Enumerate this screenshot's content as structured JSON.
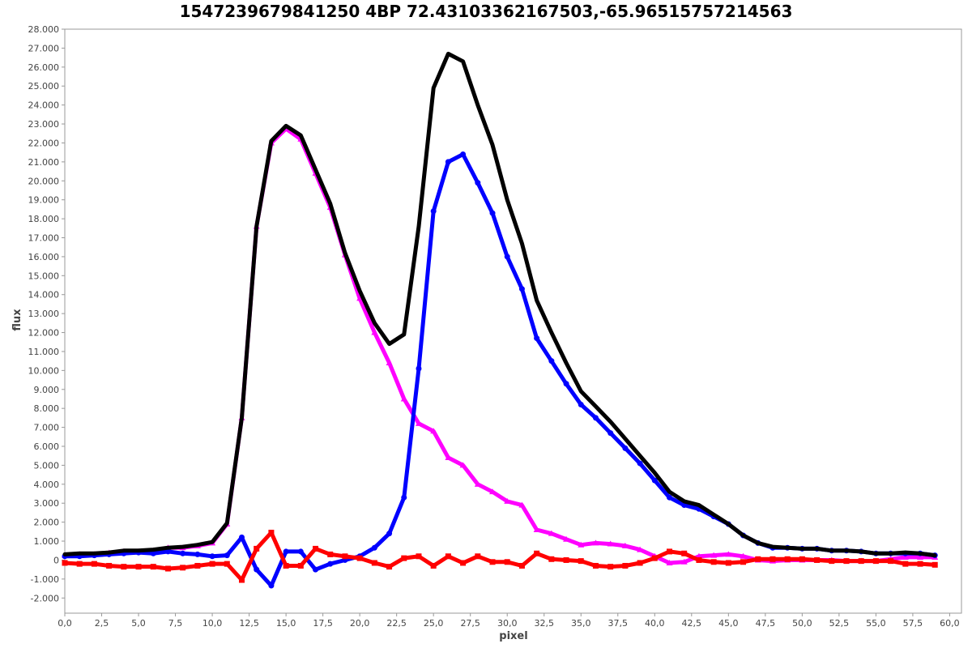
{
  "chart_data": {
    "type": "line",
    "title": "1547239679841250 4BP 72.43103362167503,-65.96515757214563",
    "xlabel": "pixel",
    "ylabel": "flux",
    "xlim": [
      0,
      60.8
    ],
    "ylim": [
      -2800,
      28000
    ],
    "x_ticks": [
      "0,0",
      "2,5",
      "5,0",
      "7,5",
      "10,0",
      "12,5",
      "15,0",
      "17,5",
      "20,0",
      "22,5",
      "25,0",
      "27,5",
      "30,0",
      "32,5",
      "35,0",
      "37,5",
      "40,0",
      "42,5",
      "45,0",
      "47,5",
      "50,0",
      "52,5",
      "55,0",
      "57,5",
      "60,0"
    ],
    "y_ticks": [
      "-2.000",
      "-1.000",
      "0",
      "1.000",
      "2.000",
      "3.000",
      "4.000",
      "5.000",
      "6.000",
      "7.000",
      "8.000",
      "9.000",
      "10.000",
      "11.000",
      "12.000",
      "13.000",
      "14.000",
      "15.000",
      "16.000",
      "17.000",
      "18.000",
      "19.000",
      "20.000",
      "21.000",
      "22.000",
      "23.000",
      "24.000",
      "25.000",
      "26.000",
      "27.000",
      "28.000"
    ],
    "x_tick_values": [
      0,
      2.5,
      5,
      7.5,
      10,
      12.5,
      15,
      17.5,
      20,
      22.5,
      25,
      27.5,
      30,
      32.5,
      35,
      37.5,
      40,
      42.5,
      45,
      47.5,
      50,
      52.5,
      55,
      57.5,
      60
    ],
    "y_tick_values": [
      -2000,
      -1000,
      0,
      1000,
      2000,
      3000,
      4000,
      5000,
      6000,
      7000,
      8000,
      9000,
      10000,
      11000,
      12000,
      13000,
      14000,
      15000,
      16000,
      17000,
      18000,
      19000,
      20000,
      21000,
      22000,
      23000,
      24000,
      25000,
      26000,
      27000,
      28000
    ],
    "grid": false,
    "x": [
      0,
      1,
      2,
      3,
      4,
      5,
      6,
      7,
      8,
      9,
      10,
      11,
      12,
      13,
      14,
      15,
      16,
      17,
      18,
      19,
      20,
      21,
      22,
      23,
      24,
      25,
      26,
      27,
      28,
      29,
      30,
      31,
      32,
      33,
      34,
      35,
      36,
      37,
      38,
      39,
      40,
      41,
      42,
      43,
      44,
      45,
      46,
      47,
      48,
      49,
      50,
      51,
      52,
      53,
      54,
      55,
      56,
      57,
      58,
      59
    ],
    "series": [
      {
        "color": "#ff00ff",
        "marker": "triangle",
        "values": [
          250,
          300,
          300,
          380,
          450,
          450,
          500,
          650,
          650,
          750,
          900,
          1900,
          7500,
          17600,
          22000,
          22750,
          22200,
          20400,
          18600,
          16100,
          13800,
          12000,
          10400,
          8500,
          7200,
          6800,
          5400,
          5000,
          4000,
          3600,
          3100,
          2900,
          1600,
          1400,
          1100,
          800,
          900,
          850,
          750,
          550,
          200,
          -150,
          -100,
          200,
          250,
          300,
          200,
          0,
          -50,
          0,
          0,
          0,
          0,
          -50,
          -50,
          -50,
          50,
          150,
          150,
          150
        ]
      },
      {
        "color": "#0000ff",
        "marker": "circle",
        "values": [
          200,
          200,
          250,
          300,
          350,
          400,
          350,
          450,
          350,
          300,
          200,
          250,
          1200,
          -500,
          -1350,
          450,
          450,
          -500,
          -200,
          0,
          200,
          650,
          1400,
          3300,
          10100,
          18400,
          21000,
          21400,
          19900,
          18300,
          16000,
          14300,
          11700,
          10500,
          9300,
          8200,
          7500,
          6700,
          5900,
          5100,
          4200,
          3300,
          2900,
          2700,
          2300,
          1900,
          1300,
          900,
          650,
          650,
          600,
          600,
          500,
          500,
          450,
          350,
          350,
          350,
          350,
          250
        ]
      },
      {
        "color": "#ff0000",
        "marker": "square",
        "values": [
          -150,
          -200,
          -200,
          -300,
          -350,
          -350,
          -350,
          -450,
          -400,
          -300,
          -200,
          -200,
          -1050,
          600,
          1450,
          -300,
          -300,
          600,
          300,
          200,
          100,
          -150,
          -350,
          100,
          200,
          -300,
          200,
          -150,
          200,
          -100,
          -100,
          -300,
          350,
          50,
          0,
          -50,
          -300,
          -350,
          -300,
          -150,
          100,
          450,
          350,
          0,
          -100,
          -150,
          -100,
          50,
          50,
          50,
          50,
          0,
          -50,
          -50,
          -50,
          -50,
          -50,
          -200,
          -200,
          -250
        ]
      },
      {
        "color": "#000000",
        "marker": "none",
        "values": [
          300,
          350,
          350,
          400,
          500,
          500,
          550,
          650,
          700,
          800,
          950,
          1950,
          7500,
          17600,
          22100,
          22900,
          22400,
          20600,
          18800,
          16200,
          14200,
          12500,
          11400,
          11900,
          17600,
          24900,
          26700,
          26300,
          24000,
          21900,
          19000,
          16700,
          13700,
          12000,
          10400,
          8900,
          8100,
          7300,
          6400,
          5500,
          4600,
          3600,
          3100,
          2900,
          2400,
          1900,
          1300,
          900,
          700,
          650,
          600,
          600,
          500,
          500,
          450,
          350,
          350,
          400,
          350,
          250
        ]
      }
    ]
  }
}
